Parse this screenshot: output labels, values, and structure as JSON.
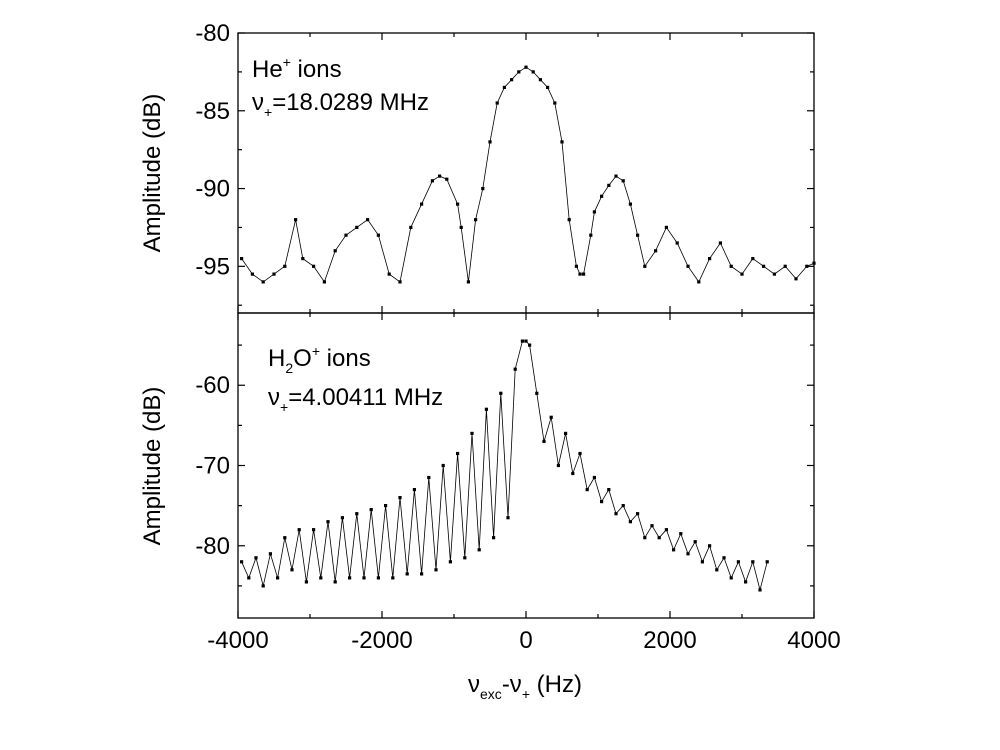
{
  "chart_data": [
    {
      "type": "line",
      "panel": "top",
      "annotation": {
        "line1_base": "He",
        "line1_sup": "+",
        "line1_rest": " ions",
        "line2_sym": "ν",
        "line2_sub": "+",
        "line2_rest": "=18.0289 MHz"
      },
      "ylabel": "Amplitude (dB)",
      "xlim": [
        -4000,
        4000
      ],
      "ylim": [
        -98,
        -80
      ],
      "yticks": [
        -80,
        -85,
        -90,
        -95
      ],
      "ytick_labels": [
        "-80",
        "-85",
        "-90",
        "-95"
      ],
      "grid": false,
      "series": [
        {
          "name": "He+",
          "x": [
            -3950,
            -3800,
            -3650,
            -3500,
            -3350,
            -3200,
            -3100,
            -2950,
            -2800,
            -2650,
            -2500,
            -2350,
            -2200,
            -2050,
            -1900,
            -1750,
            -1600,
            -1450,
            -1300,
            -1200,
            -1100,
            -950,
            -900,
            -800,
            -700,
            -600,
            -500,
            -400,
            -300,
            -200,
            -100,
            0,
            100,
            200,
            300,
            400,
            500,
            600,
            700,
            750,
            800,
            900,
            950,
            1050,
            1150,
            1250,
            1350,
            1450,
            1550,
            1650,
            1800,
            1950,
            2100,
            2250,
            2400,
            2550,
            2700,
            2850,
            3000,
            3150,
            3300,
            3450,
            3600,
            3750,
            3900,
            4000
          ],
          "y": [
            -94.5,
            -95.5,
            -96,
            -95.5,
            -95,
            -92,
            -94.5,
            -95,
            -96,
            -94,
            -93,
            -92.5,
            -92,
            -93,
            -95.5,
            -96,
            -92.5,
            -91,
            -89.5,
            -89.2,
            -89.4,
            -91,
            -92.5,
            -96,
            -92,
            -90,
            -87,
            -84.5,
            -83.5,
            -83,
            -82.5,
            -82.2,
            -82.5,
            -83,
            -83.5,
            -84.5,
            -87,
            -92,
            -95,
            -95.5,
            -95.5,
            -93,
            -91.5,
            -90.5,
            -89.8,
            -89.2,
            -89.5,
            -91,
            -93,
            -95,
            -94,
            -92.5,
            -93.5,
            -95,
            -96,
            -94.5,
            -93.5,
            -95,
            -95.5,
            -94.5,
            -95,
            -95.5,
            -95,
            -95.8,
            -95,
            -94.8
          ]
        }
      ]
    },
    {
      "type": "line",
      "panel": "bottom",
      "annotation": {
        "line1_base": "H",
        "line1_sub": "2",
        "line1_mid": "O",
        "line1_sup": "+",
        "line1_rest": " ions",
        "line2_sym": "ν",
        "line2_sub": "+",
        "line2_rest": "=4.00411 MHz"
      },
      "ylabel": "Amplitude (dB)",
      "xlabel_sym": "ν",
      "xlabel_sub1": "exc",
      "xlabel_mid": "-ν",
      "xlabel_sub2": "+",
      "xlabel_rest": " (Hz)",
      "xlim": [
        -4000,
        4000
      ],
      "ylim": [
        -89,
        -51
      ],
      "xticks": [
        -4000,
        -2000,
        0,
        2000,
        4000
      ],
      "xtick_labels": [
        "-4000",
        "-2000",
        "0",
        "2000",
        "4000"
      ],
      "yticks": [
        -60,
        -70,
        -80
      ],
      "ytick_labels": [
        "-60",
        "-70",
        "-80"
      ],
      "grid": false,
      "series": [
        {
          "name": "H2O+",
          "x": [
            -3950,
            -3850,
            -3750,
            -3650,
            -3550,
            -3450,
            -3350,
            -3250,
            -3150,
            -3050,
            -2950,
            -2850,
            -2750,
            -2650,
            -2550,
            -2450,
            -2350,
            -2250,
            -2150,
            -2050,
            -1950,
            -1850,
            -1750,
            -1650,
            -1550,
            -1450,
            -1350,
            -1250,
            -1150,
            -1050,
            -950,
            -850,
            -750,
            -650,
            -550,
            -450,
            -350,
            -250,
            -150,
            -50,
            0,
            50,
            150,
            250,
            350,
            450,
            550,
            650,
            750,
            850,
            950,
            1050,
            1150,
            1250,
            1350,
            1450,
            1550,
            1650,
            1750,
            1850,
            1950,
            2050,
            2150,
            2250,
            2350,
            2450,
            2550,
            2650,
            2750,
            2850,
            2950,
            3050,
            3150,
            3250,
            3350
          ],
          "y": [
            -82,
            -84,
            -81.5,
            -85,
            -81,
            -84,
            -79,
            -83,
            -78,
            -84.5,
            -78,
            -84,
            -77,
            -84.5,
            -76.5,
            -84,
            -76,
            -84,
            -75.5,
            -84,
            -75,
            -84,
            -74,
            -83.5,
            -73,
            -83.5,
            -71.5,
            -83,
            -70,
            -82,
            -68.5,
            -81.5,
            -66,
            -80.5,
            -63,
            -79,
            -61,
            -76.5,
            -58,
            -54.5,
            -54.5,
            -55,
            -61,
            -67,
            -64,
            -70,
            -66,
            -71,
            -68.5,
            -73,
            -71.5,
            -74.5,
            -73,
            -76,
            -75,
            -77,
            -76,
            -79,
            -77.5,
            -79,
            -78,
            -80.5,
            -78.5,
            -81,
            -79.5,
            -82,
            -80,
            -83,
            -81.5,
            -84,
            -82,
            -84.5,
            -82,
            -85.5,
            -82
          ]
        }
      ]
    }
  ]
}
